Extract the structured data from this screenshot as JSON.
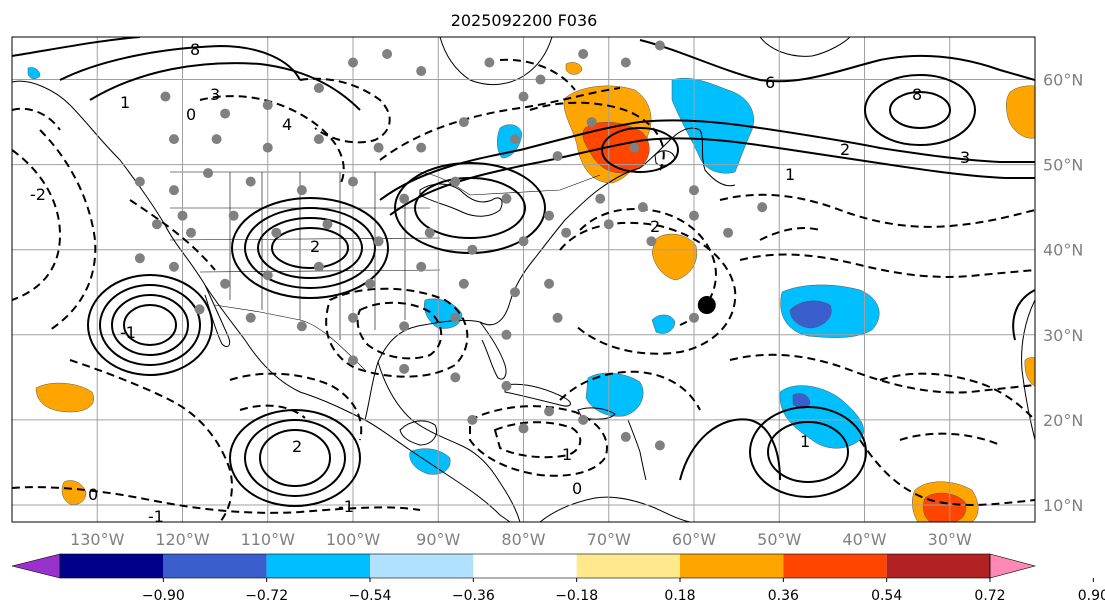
{
  "title": "2025092200 F036",
  "map": {
    "lon_range": [
      -140,
      -20
    ],
    "lat_range": [
      8,
      65
    ],
    "lat_labels": [
      "60°N",
      "50°N",
      "40°N",
      "30°N",
      "20°N",
      "10°N"
    ],
    "lat_values": [
      60,
      50,
      40,
      30,
      20,
      10
    ],
    "lon_labels": [
      "130°W",
      "120°W",
      "110°W",
      "100°W",
      "90°W",
      "80°W",
      "70°W",
      "60°W",
      "50°W",
      "40°W",
      "30°W"
    ],
    "lon_values": [
      -130,
      -120,
      -110,
      -100,
      -90,
      -80,
      -70,
      -60,
      -50,
      -40,
      -30
    ],
    "gridlines": true,
    "grid_color": "#a0a0a0",
    "land_outline_color": "#000000",
    "marker": {
      "lon": -58.5,
      "lat": 33.5,
      "color": "#000000"
    },
    "station_color": "#808080",
    "contour_labels": [
      "8",
      "3",
      "4",
      "0",
      "1",
      "2",
      "-1",
      "-2",
      "6",
      "8",
      "3",
      "2",
      "1",
      "2",
      "1",
      "0",
      "0",
      "-1",
      "1",
      "2",
      "-1"
    ]
  },
  "colorbar": {
    "boundaries": [
      "−0.90",
      "−0.72",
      "−0.54",
      "−0.36",
      "−0.18",
      "0.18",
      "0.36",
      "0.54",
      "0.72",
      "0.90"
    ],
    "colors": [
      "#9932cc",
      "#00008b",
      "#3a5fcd",
      "#00bfff",
      "#b0e2ff",
      "#ffffff",
      "#ffe98c",
      "#ffa500",
      "#ff4500",
      "#b22222",
      "#ff88b4"
    ],
    "extend": "both"
  },
  "shading_colors": {
    "orange": "#ffa500",
    "red_orange": "#ff4500",
    "sky_blue": "#00bfff",
    "royal_blue": "#3a5fcd",
    "light_yellow": "#ffe98c"
  }
}
